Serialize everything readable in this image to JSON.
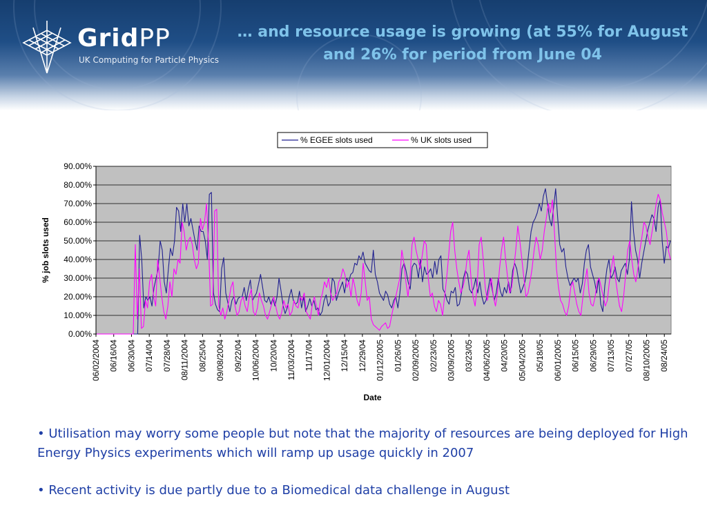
{
  "header": {
    "brand_grid": "Grid",
    "brand_pp": "PP",
    "brand_subtitle": "UK Computing for Particle Physics",
    "slide_title": "… and resource usage is growing (at 55% for August and 26% for period from June 04"
  },
  "colors": {
    "egee": "#1f1f8f",
    "uk": "#ff00ff",
    "plot_bg": "#c0c0c0",
    "title": "#7fc3ea",
    "bullet_text": "#1f3fa6"
  },
  "chart_data": {
    "type": "line",
    "title": "",
    "xlabel": "Date",
    "ylabel": "% job slots used",
    "ylim": [
      0,
      90
    ],
    "y_ticks": [
      "0.00%",
      "10.00%",
      "20.00%",
      "30.00%",
      "40.00%",
      "50.00%",
      "60.00%",
      "70.00%",
      "80.00%",
      "90.00%"
    ],
    "x_ticks": [
      "06/02/2004",
      "06/16/04",
      "06/30/04",
      "07/14/04",
      "07/28/04",
      "08/11/2004",
      "08/25/04",
      "09/08/2004",
      "09/22/04",
      "10/06/2004",
      "10/20/04",
      "11/03/2004",
      "11/17/04",
      "12/01/2004",
      "12/15/04",
      "12/29/04",
      "01/12/2005",
      "01/26/05",
      "02/09/2005",
      "02/23/05",
      "03/09/2005",
      "03/23/05",
      "04/06/2005",
      "04/20/05",
      "05/04/2005",
      "05/18/05",
      "06/01/2005",
      "06/15/05",
      "06/29/05",
      "07/13/05",
      "07/27/05",
      "08/10/2005",
      "08/24/05"
    ],
    "grid": true,
    "legend_position": "top-center",
    "series": [
      {
        "name": "% EGEE slots used",
        "values": [
          0,
          0,
          0,
          0,
          0,
          0,
          0,
          0,
          0,
          0,
          0,
          0,
          0,
          0,
          0,
          0,
          0,
          0,
          0,
          0,
          0,
          53,
          40,
          14,
          20,
          18,
          20,
          15,
          25,
          30,
          35,
          50,
          45,
          28,
          22,
          35,
          46,
          42,
          50,
          68,
          66,
          55,
          70,
          60,
          70,
          58,
          62,
          56,
          50,
          45,
          58,
          55,
          55,
          50,
          40,
          75,
          76,
          22,
          16,
          13,
          12,
          35,
          41,
          22,
          17,
          12,
          18,
          20,
          16,
          19,
          20,
          20,
          25,
          18,
          24,
          29,
          18,
          20,
          22,
          27,
          32,
          25,
          18,
          17,
          20,
          16,
          19,
          15,
          20,
          30,
          23,
          15,
          11,
          14,
          20,
          24,
          18,
          16,
          17,
          23,
          14,
          20,
          12,
          15,
          19,
          15,
          18,
          13,
          14,
          10,
          12,
          18,
          21,
          15,
          17,
          30,
          28,
          18,
          22,
          25,
          28,
          22,
          30,
          28,
          32,
          33,
          38,
          37,
          42,
          40,
          44,
          38,
          36,
          34,
          33,
          45,
          32,
          28,
          22,
          20,
          18,
          23,
          21,
          16,
          14,
          18,
          20,
          14,
          22,
          35,
          38,
          34,
          28,
          24,
          36,
          38,
          37,
          30,
          40,
          28,
          36,
          32,
          33,
          35,
          30,
          39,
          32,
          40,
          42,
          24,
          22,
          18,
          16,
          23,
          22,
          25,
          15,
          16,
          22,
          30,
          34,
          32,
          24,
          22,
          25,
          30,
          22,
          28,
          20,
          16,
          18,
          24,
          30,
          24,
          18,
          22,
          30,
          23,
          20,
          25,
          22,
          28,
          22,
          34,
          38,
          35,
          28,
          22,
          25,
          28,
          35,
          45,
          55,
          60,
          62,
          65,
          70,
          66,
          74,
          78,
          70,
          62,
          58,
          68,
          78,
          62,
          48,
          44,
          46,
          36,
          30,
          26,
          28,
          30,
          28,
          30,
          22,
          27,
          38,
          45,
          48,
          36,
          32,
          28,
          22,
          30,
          16,
          12,
          26,
          35,
          40,
          30,
          32,
          36,
          30,
          28,
          34,
          36,
          38,
          32,
          40,
          71,
          55,
          45,
          40,
          30,
          38,
          44,
          50,
          56,
          60,
          64,
          62,
          55,
          68,
          72,
          50,
          38,
          47,
          46,
          50
        ]
      },
      {
        "name": "% UK slots used",
        "values": [
          0,
          0,
          0,
          0,
          0,
          0,
          0,
          0,
          0,
          0,
          0,
          0,
          0,
          0,
          0,
          0,
          0,
          0,
          0,
          48,
          8,
          35,
          3,
          4,
          18,
          14,
          28,
          32,
          20,
          15,
          40,
          30,
          20,
          12,
          8,
          15,
          28,
          20,
          35,
          32,
          40,
          38,
          60,
          55,
          45,
          50,
          52,
          48,
          40,
          35,
          38,
          62,
          56,
          60,
          70,
          48,
          15,
          16,
          66,
          67,
          15,
          10,
          14,
          8,
          12,
          18,
          25,
          28,
          15,
          10,
          12,
          18,
          20,
          15,
          12,
          20,
          24,
          12,
          10,
          14,
          22,
          18,
          15,
          10,
          8,
          12,
          16,
          20,
          15,
          10,
          8,
          12,
          18,
          14,
          16,
          10,
          12,
          18,
          15,
          14,
          20,
          18,
          22,
          12,
          10,
          8,
          16,
          20,
          15,
          10,
          18,
          22,
          28,
          25,
          30,
          22,
          18,
          20,
          22,
          28,
          30,
          35,
          32,
          25,
          28,
          20,
          30,
          25,
          18,
          15,
          22,
          38,
          28,
          18,
          20,
          8,
          5,
          4,
          3,
          2,
          4,
          5,
          6,
          3,
          4,
          10,
          15,
          20,
          25,
          30,
          45,
          38,
          28,
          20,
          30,
          48,
          52,
          45,
          40,
          35,
          42,
          50,
          48,
          30,
          20,
          22,
          15,
          12,
          18,
          16,
          10,
          20,
          30,
          42,
          55,
          60,
          45,
          35,
          28,
          22,
          25,
          30,
          40,
          45,
          30,
          20,
          15,
          25,
          48,
          52,
          40,
          25,
          18,
          24,
          30,
          20,
          15,
          22,
          35,
          45,
          52,
          40,
          30,
          22,
          25,
          35,
          45,
          58,
          50,
          40,
          30,
          20,
          22,
          28,
          35,
          45,
          52,
          48,
          40,
          45,
          55,
          62,
          70,
          65,
          72,
          55,
          35,
          25,
          18,
          16,
          12,
          10,
          15,
          25,
          28,
          22,
          16,
          12,
          10,
          20,
          28,
          35,
          22,
          16,
          15,
          20,
          28,
          30,
          25,
          20,
          15,
          18,
          28,
          35,
          42,
          30,
          22,
          15,
          12,
          20,
          32,
          45,
          50,
          40,
          32,
          28,
          35,
          45,
          52,
          60,
          58,
          52,
          48,
          55,
          62,
          70,
          75,
          72,
          65,
          60,
          55,
          45,
          40
        ]
      }
    ]
  },
  "bullets": [
    "• Utilisation may worry some people but note that the majority of resources are being deployed for High Energy Physics experiments which will ramp up usage quickly in 2007",
    "• Recent activity is due partly due to a Biomedical data challenge in August"
  ]
}
